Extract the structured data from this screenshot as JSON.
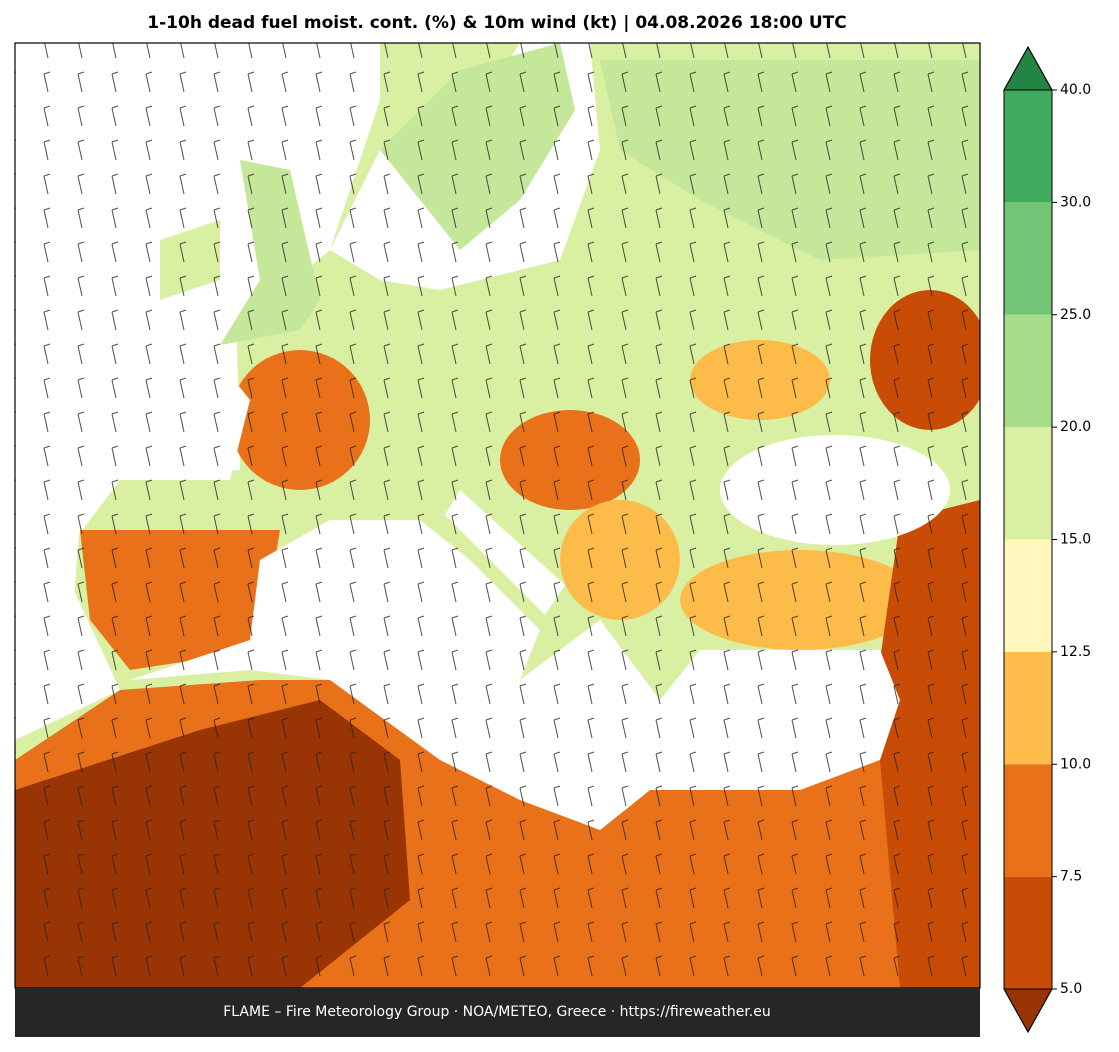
{
  "title": "1-10h dead fuel moist. cont. (%) & 10m wind (kt)  |  04.08.2026 18:00 UTC",
  "footer": "FLAME – Fire Meteorology Group · NOA/METEO, Greece · https://fireweather.eu",
  "colorbar": {
    "levels": [
      {
        "value": 5,
        "label": "5.0"
      },
      7.5,
      {
        "value": 10,
        "label": "10.0"
      },
      12.5,
      {
        "value": 15,
        "label": "15.0"
      },
      {
        "value": 20,
        "label": "20.0"
      },
      {
        "value": 25,
        "label": "25.0"
      },
      {
        "value": 30,
        "label": "30.0"
      },
      {
        "value": 40,
        "label": "40.0"
      }
    ],
    "colors": [
      "#c84c06",
      "#e8711a",
      "#fdbb4a",
      "#fff7bc",
      "#d9f0a3",
      "#a6dc8a",
      "#74c476",
      "#41ab5d"
    ],
    "under_color": "#993404",
    "over_color": "#238443"
  }
}
